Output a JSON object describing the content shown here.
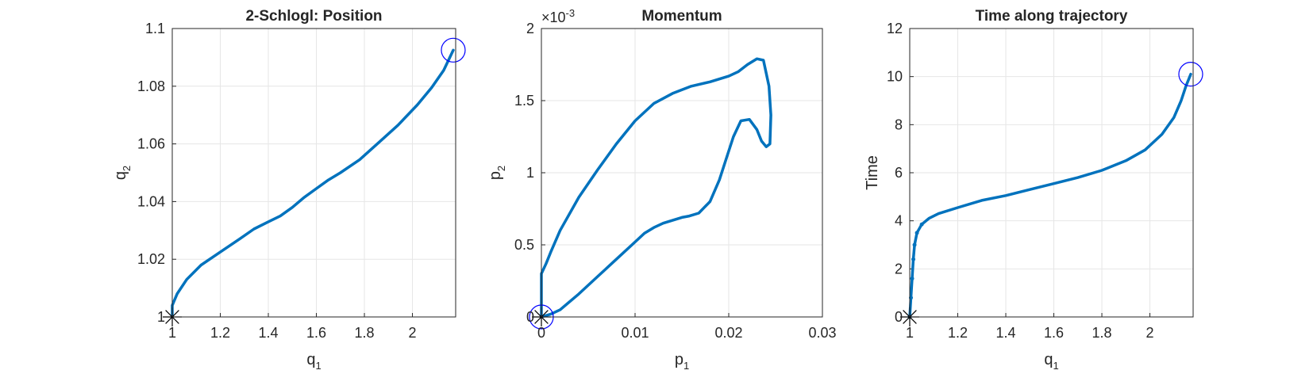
{
  "colors": {
    "line": "#0072BD",
    "start_marker": "#000000",
    "end_marker": "#0000FF",
    "grid": "#E6E6E6",
    "axes": "#262626"
  },
  "chart_data": [
    {
      "type": "line",
      "title": "2-Schlogl: Position",
      "xlabel": "q",
      "xlabel_sub": "1",
      "ylabel": "q",
      "ylabel_sub": "2",
      "xlim": [
        1,
        2.18
      ],
      "ylim": [
        1,
        1.1
      ],
      "xticks": [
        1,
        1.2,
        1.4,
        1.6,
        1.8,
        2
      ],
      "xtick_labels": [
        "1",
        "1.2",
        "1.4",
        "1.6",
        "1.8",
        "2"
      ],
      "yticks": [
        1,
        1.02,
        1.04,
        1.06,
        1.08,
        1.1
      ],
      "ytick_labels": [
        "1",
        "1.02",
        "1.04",
        "1.06",
        "1.08",
        "1.1"
      ],
      "grid": true,
      "series": [
        {
          "x": [
            1.0,
            1.0,
            1.02,
            1.06,
            1.12,
            1.2,
            1.28,
            1.34,
            1.4,
            1.45,
            1.5,
            1.55,
            1.6,
            1.65,
            1.7,
            1.78,
            1.86,
            1.94,
            2.02,
            2.08,
            2.13,
            2.17
          ],
          "y": [
            1.0,
            1.004,
            1.008,
            1.013,
            1.018,
            1.0225,
            1.027,
            1.0305,
            1.033,
            1.035,
            1.038,
            1.0415,
            1.0445,
            1.0475,
            1.05,
            1.0545,
            1.0605,
            1.0665,
            1.0735,
            1.0795,
            1.0855,
            1.0925
          ]
        }
      ],
      "markers": [
        {
          "kind": "asterisk",
          "x": 1.0,
          "y": 1.0
        },
        {
          "kind": "circle",
          "x": 2.17,
          "y": 1.0925
        }
      ]
    },
    {
      "type": "line",
      "title": "Momentum",
      "xlabel": "p",
      "xlabel_sub": "1",
      "ylabel": "p",
      "ylabel_sub": "2",
      "y_exponent": "×10",
      "y_exponent_power": "-3",
      "xlim": [
        0,
        0.03
      ],
      "ylim": [
        0,
        0.002
      ],
      "xticks": [
        0,
        0.01,
        0.02,
        0.03
      ],
      "xtick_labels": [
        "0",
        "0.01",
        "0.02",
        "0.03"
      ],
      "yticks": [
        0,
        0.0005,
        0.001,
        0.0015,
        0.002
      ],
      "ytick_labels": [
        "0",
        "0.5",
        "1",
        "1.5",
        "2"
      ],
      "grid": true,
      "series": [
        {
          "x": [
            0,
            0,
            0.0005,
            0.001,
            0.002,
            0.004,
            0.006,
            0.008,
            0.01,
            0.012,
            0.014,
            0.016,
            0.018,
            0.02,
            0.021,
            0.022,
            0.023,
            0.0237,
            0.0243,
            0.0245,
            0.0244,
            0.024,
            0.0235,
            0.023,
            0.0222,
            0.0213,
            0.0205,
            0.0198,
            0.019,
            0.018,
            0.0168,
            0.0158,
            0.015,
            0.014,
            0.013,
            0.012,
            0.011,
            0.01,
            0.008,
            0.006,
            0.004,
            0.002,
            0.001,
            0
          ],
          "y": [
            0,
            0.0003,
            0.00037,
            0.00045,
            0.0006,
            0.00083,
            0.00102,
            0.0012,
            0.00136,
            0.00148,
            0.00155,
            0.0016,
            0.00163,
            0.00167,
            0.0017,
            0.00175,
            0.00179,
            0.00178,
            0.0016,
            0.0014,
            0.0012,
            0.00118,
            0.00122,
            0.0013,
            0.00137,
            0.00136,
            0.00125,
            0.00111,
            0.00095,
            0.0008,
            0.00072,
            0.0007,
            0.00069,
            0.00067,
            0.00065,
            0.00062,
            0.00058,
            0.00052,
            0.0004,
            0.00028,
            0.00016,
            5e-05,
            2e-05,
            0
          ]
        }
      ],
      "markers": [
        {
          "kind": "asterisk",
          "x": 0,
          "y": 0
        },
        {
          "kind": "circle",
          "x": 0,
          "y": 0
        }
      ]
    },
    {
      "type": "line",
      "title": "Time along trajectory",
      "xlabel": "q",
      "xlabel_sub": "1",
      "ylabel": "Time",
      "ylabel_sub": "",
      "xlim": [
        1,
        2.18
      ],
      "ylim": [
        0,
        12
      ],
      "xticks": [
        1,
        1.2,
        1.4,
        1.6,
        1.8,
        2
      ],
      "xtick_labels": [
        "1",
        "1.2",
        "1.4",
        "1.6",
        "1.8",
        "2"
      ],
      "yticks": [
        0,
        2,
        4,
        6,
        8,
        10,
        12
      ],
      "ytick_labels": [
        "0",
        "2",
        "4",
        "6",
        "8",
        "10",
        "12"
      ],
      "grid": true,
      "series": [
        {
          "x": [
            1.0,
            1.005,
            1.01,
            1.015,
            1.02,
            1.03,
            1.05,
            1.08,
            1.12,
            1.2,
            1.3,
            1.4,
            1.5,
            1.6,
            1.7,
            1.8,
            1.9,
            1.98,
            2.05,
            2.1,
            2.13,
            2.15,
            2.17
          ],
          "y": [
            0.0,
            0.8,
            1.6,
            2.4,
            3.0,
            3.5,
            3.85,
            4.1,
            4.3,
            4.55,
            4.85,
            5.05,
            5.3,
            5.55,
            5.8,
            6.1,
            6.5,
            6.95,
            7.6,
            8.3,
            9.0,
            9.6,
            10.1
          ]
        }
      ],
      "markers": [
        {
          "kind": "asterisk",
          "x": 1.0,
          "y": 0.0
        },
        {
          "kind": "circle",
          "x": 2.17,
          "y": 10.1
        }
      ]
    }
  ]
}
